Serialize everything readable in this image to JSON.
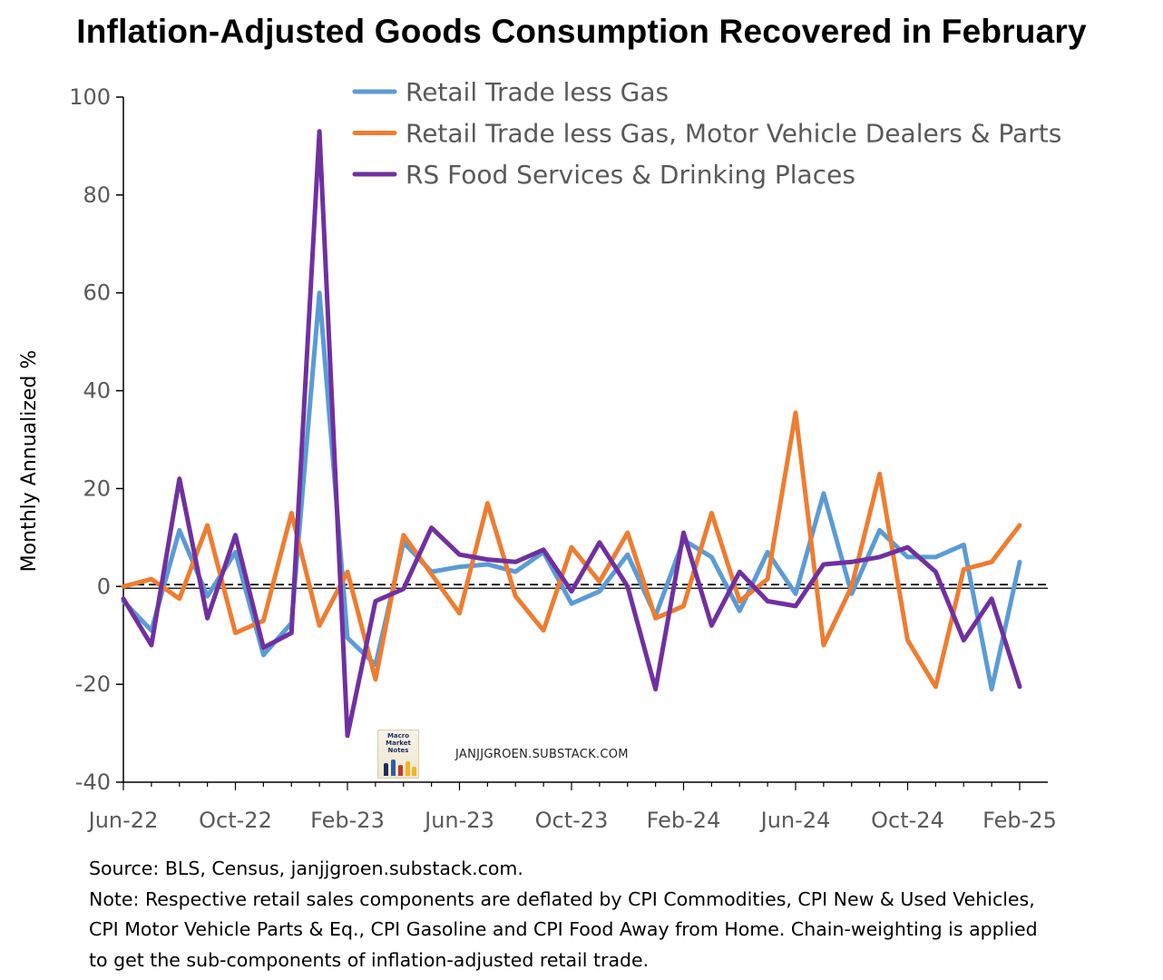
{
  "chart_data": {
    "type": "line",
    "title": "Inflation-Adjusted Goods Consumption Recovered in February",
    "ylabel": "Monthly Annualized %",
    "ylim": [
      -40,
      100
    ],
    "yticks": [
      -40,
      -20,
      0,
      20,
      40,
      60,
      80,
      100
    ],
    "x": [
      "2022-06",
      "2022-07",
      "2022-08",
      "2022-09",
      "2022-10",
      "2022-11",
      "2022-12",
      "2023-01",
      "2023-02",
      "2023-03",
      "2023-04",
      "2023-05",
      "2023-06",
      "2023-07",
      "2023-08",
      "2023-09",
      "2023-10",
      "2023-11",
      "2023-12",
      "2024-01",
      "2024-02",
      "2024-03",
      "2024-04",
      "2024-05",
      "2024-06",
      "2024-07",
      "2024-08",
      "2024-09",
      "2024-10",
      "2024-11",
      "2024-12",
      "2025-01",
      "2025-02"
    ],
    "xtick_labels": [
      "Jun-22",
      "Oct-22",
      "Feb-23",
      "Jun-23",
      "Oct-23",
      "Feb-24",
      "Jun-24",
      "Oct-24",
      "Feb-25"
    ],
    "zero_line": "dashed",
    "grid": false,
    "legend_position": "top",
    "series": [
      {
        "name": "Retail Trade less Gas",
        "color": "#5b9bd5",
        "values": [
          -3,
          -9,
          11.5,
          -2,
          7,
          -14,
          -7.5,
          60,
          -10.5,
          -16,
          9,
          3,
          4,
          4.5,
          3,
          7,
          -3.5,
          -1,
          6.5,
          -6,
          9.5,
          6,
          -5,
          7,
          -1.5,
          19,
          -1.5,
          11.5,
          6,
          6,
          8.5,
          -21,
          5
        ]
      },
      {
        "name": "Retail Trade less Gas, Motor Vehicle Dealers & Parts",
        "color": "#ed7d31",
        "values": [
          0,
          1.5,
          -2.5,
          12.5,
          -9.5,
          -7,
          15,
          -8,
          3,
          -19,
          10.5,
          2.5,
          -5.5,
          17,
          -2,
          -9,
          8,
          1,
          11,
          -6.5,
          -4,
          15,
          -3,
          1.5,
          35.5,
          -12,
          0,
          23,
          -11,
          -20.5,
          3.5,
          5,
          12.5
        ]
      },
      {
        "name": "RS Food Services & Drinking Places",
        "color": "#7030a0",
        "values": [
          -2.5,
          -12,
          22,
          -6.5,
          10.5,
          -12.5,
          -9.5,
          93,
          -30.5,
          -3,
          -0.5,
          12,
          6.5,
          5.5,
          5,
          7.5,
          -1,
          9,
          0,
          -21,
          11,
          -8,
          3,
          -3,
          -4,
          4.5,
          5,
          6,
          8,
          3,
          -11,
          -2.5,
          -20.5
        ]
      }
    ]
  },
  "watermark": {
    "logo_text": "Macro Market Notes",
    "text": "JANJJGROEN.SUBSTACK.COM"
  },
  "notes": {
    "source": "Source: BLS, Census, janjjgroen.substack.com.",
    "note_lines": [
      "Note: Respective retail sales components are deflated by CPI Commodities, CPI New & Used Vehicles,",
      "CPI Motor Vehicle Parts & Eq., CPI Gasoline and CPI Food Away from Home. Chain-weighting is applied",
      "to get the sub-components of inflation-adjusted retail trade."
    ]
  }
}
